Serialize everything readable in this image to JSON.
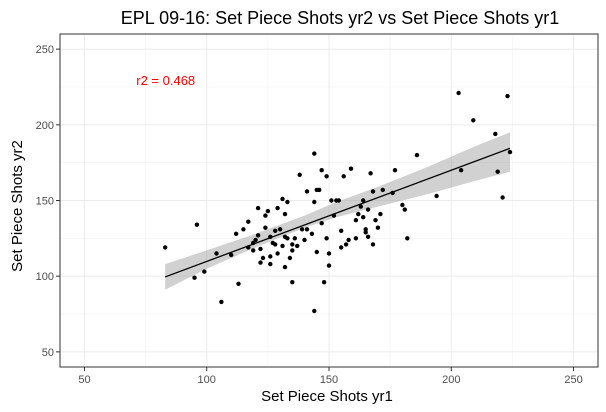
{
  "chart_data": {
    "type": "scatter",
    "title": "EPL 09-16: Set Piece Shots yr2 vs Set Piece Shots yr1",
    "xlabel": "Set Piece Shots yr1",
    "ylabel": "Set Piece Shots yr2",
    "xlim": [
      40,
      260
    ],
    "ylim": [
      40,
      260
    ],
    "xticks": [
      50,
      100,
      150,
      200,
      250
    ],
    "yticks": [
      50,
      100,
      150,
      200,
      250
    ],
    "grid": true,
    "annotation": {
      "text": "r2 = 0.468",
      "x": 72,
      "y": 229,
      "color": "#ff0000"
    },
    "regression": {
      "x": [
        83,
        224
      ],
      "y": [
        99.5,
        184.5
      ],
      "band_x": [
        83,
        100,
        120,
        140,
        153,
        170,
        190,
        210,
        224
      ],
      "band_lower": [
        91,
        105,
        119,
        132,
        139,
        146,
        154,
        163,
        169
      ],
      "band_upper": [
        108,
        117,
        128,
        140,
        149,
        159,
        172,
        186,
        195
      ]
    },
    "points": {
      "x": [
        83,
        95,
        96,
        99,
        104,
        106,
        110,
        112,
        113,
        115,
        117,
        117,
        119,
        119,
        120,
        121,
        121,
        122,
        122,
        123,
        124,
        124,
        125,
        126,
        126,
        126,
        127,
        128,
        128,
        129,
        129,
        130,
        131,
        131,
        132,
        132,
        132,
        133,
        133,
        134,
        135,
        135,
        135,
        136,
        137,
        138,
        139,
        140,
        141,
        141,
        143,
        144,
        144,
        144,
        145,
        145,
        146,
        147,
        147,
        148,
        149,
        149,
        150,
        150,
        151,
        152,
        153,
        154,
        155,
        155,
        156,
        157,
        158,
        159,
        161,
        161,
        162,
        163,
        164,
        164,
        165,
        165,
        166,
        166,
        167,
        168,
        168,
        169,
        170,
        171,
        172,
        176,
        177,
        180,
        181,
        182,
        186,
        194,
        203,
        204,
        209,
        218,
        219,
        221,
        223,
        224
      ],
      "y": [
        119,
        99,
        134,
        103,
        115,
        83,
        114,
        128,
        95,
        131,
        136,
        119,
        122,
        117,
        124,
        145,
        127,
        118,
        109,
        112,
        132,
        140,
        143,
        113,
        108,
        126,
        122,
        121,
        130,
        145,
        115,
        131,
        120,
        151,
        126,
        141,
        106,
        125,
        149,
        112,
        96,
        117,
        121,
        125,
        120,
        167,
        131,
        124,
        156,
        131,
        128,
        181,
        149,
        77,
        116,
        157,
        157,
        170,
        135,
        96,
        125,
        166,
        107,
        115,
        150,
        140,
        150,
        150,
        119,
        130,
        166,
        121,
        124,
        171,
        125,
        137,
        141,
        146,
        139,
        150,
        129,
        131,
        126,
        144,
        168,
        121,
        156,
        137,
        132,
        141,
        157,
        155,
        170,
        147,
        144,
        125,
        180,
        153,
        221,
        170,
        203,
        194,
        169,
        152,
        219,
        182
      ]
    }
  }
}
